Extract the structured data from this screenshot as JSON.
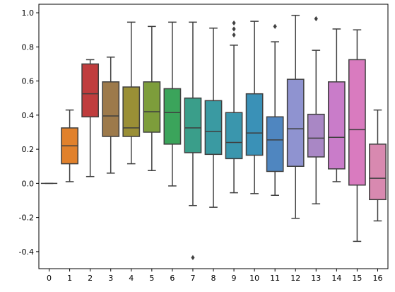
{
  "chart_data": {
    "type": "boxplot",
    "title": "",
    "xlabel": "",
    "ylabel": "",
    "ylim": [
      -0.5,
      1.05
    ],
    "yticks": [
      "-0.4",
      "-0.2",
      "0.0",
      "0.2",
      "0.4",
      "0.6",
      "0.8",
      "1.0"
    ],
    "ytick_values": [
      -0.4,
      -0.2,
      0.0,
      0.2,
      0.4,
      0.6,
      0.8,
      1.0
    ],
    "grid": false,
    "legend": "none",
    "categories": [
      "0",
      "1",
      "2",
      "3",
      "4",
      "5",
      "6",
      "7",
      "8",
      "9",
      "10",
      "11",
      "12",
      "13",
      "14",
      "15",
      "16"
    ],
    "colors": [
      "#3274a1",
      "#e1812c",
      "#c03d3e",
      "#9d7a4b",
      "#9a8f36",
      "#7d9d3b",
      "#3ba45b",
      "#3a9e8a",
      "#3a9aa2",
      "#3a96ad",
      "#3a91b7",
      "#4f86c0",
      "#8f93d0",
      "#a987c5",
      "#c97cc9",
      "#d97bbf",
      "#d889b0"
    ],
    "boxes": [
      {
        "category": "0",
        "whislo": 0.0,
        "q1": 0.0,
        "med": 0.0,
        "q3": 0.0,
        "whishi": 0.0,
        "fliers": []
      },
      {
        "category": "1",
        "whislo": 0.01,
        "q1": 0.115,
        "med": 0.22,
        "q3": 0.325,
        "whishi": 0.43,
        "fliers": []
      },
      {
        "category": "2",
        "whislo": 0.04,
        "q1": 0.39,
        "med": 0.525,
        "q3": 0.7,
        "whishi": 0.725,
        "fliers": []
      },
      {
        "category": "3",
        "whislo": 0.06,
        "q1": 0.275,
        "med": 0.395,
        "q3": 0.595,
        "whishi": 0.74,
        "fliers": []
      },
      {
        "category": "4",
        "whislo": 0.115,
        "q1": 0.275,
        "med": 0.325,
        "q3": 0.565,
        "whishi": 0.945,
        "fliers": []
      },
      {
        "category": "5",
        "whislo": 0.075,
        "q1": 0.3,
        "med": 0.42,
        "q3": 0.595,
        "whishi": 0.92,
        "fliers": []
      },
      {
        "category": "6",
        "whislo": -0.015,
        "q1": 0.23,
        "med": 0.415,
        "q3": 0.555,
        "whishi": 0.945,
        "fliers": []
      },
      {
        "category": "7",
        "whislo": -0.13,
        "q1": 0.18,
        "med": 0.325,
        "q3": 0.5,
        "whishi": 0.945,
        "fliers": [
          -0.435
        ]
      },
      {
        "category": "8",
        "whislo": -0.14,
        "q1": 0.17,
        "med": 0.305,
        "q3": 0.485,
        "whishi": 0.91,
        "fliers": []
      },
      {
        "category": "9",
        "whislo": -0.055,
        "q1": 0.145,
        "med": 0.24,
        "q3": 0.415,
        "whishi": 0.81,
        "fliers": [
          0.87,
          0.905,
          0.94
        ]
      },
      {
        "category": "10",
        "whislo": -0.06,
        "q1": 0.165,
        "med": 0.295,
        "q3": 0.525,
        "whishi": 0.95,
        "fliers": []
      },
      {
        "category": "11",
        "whislo": -0.07,
        "q1": 0.07,
        "med": 0.255,
        "q3": 0.39,
        "whishi": 0.83,
        "fliers": [
          0.92
        ]
      },
      {
        "category": "12",
        "whislo": -0.205,
        "q1": 0.1,
        "med": 0.32,
        "q3": 0.61,
        "whishi": 0.985,
        "fliers": []
      },
      {
        "category": "13",
        "whislo": -0.12,
        "q1": 0.155,
        "med": 0.265,
        "q3": 0.405,
        "whishi": 0.78,
        "fliers": [
          0.965
        ]
      },
      {
        "category": "14",
        "whislo": 0.01,
        "q1": 0.085,
        "med": 0.27,
        "q3": 0.595,
        "whishi": 0.905,
        "fliers": []
      },
      {
        "category": "15",
        "whislo": -0.34,
        "q1": -0.01,
        "med": 0.315,
        "q3": 0.725,
        "whishi": 0.9,
        "fliers": []
      },
      {
        "category": "16",
        "whislo": -0.22,
        "q1": -0.095,
        "med": 0.03,
        "q3": 0.23,
        "whishi": 0.43,
        "fliers": []
      }
    ]
  }
}
